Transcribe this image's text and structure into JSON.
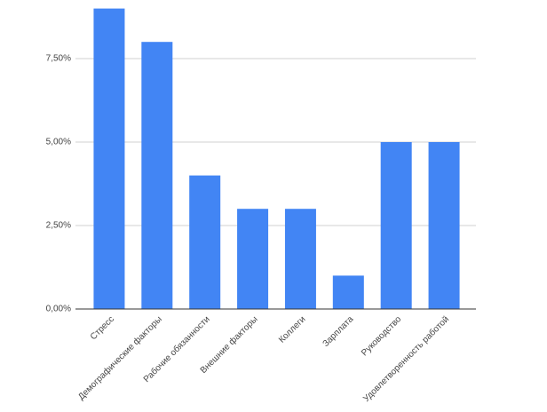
{
  "chart_data": {
    "type": "bar",
    "categories": [
      "Стресс",
      "Демографические факторы",
      "Рабочие обязанности",
      "Внешние факторы",
      "Коллеги",
      "Зарплата",
      "Руководство",
      "Удовлетворенность работой"
    ],
    "values": [
      9,
      8,
      4,
      3,
      3,
      1,
      5,
      5
    ],
    "color": "#4285f4",
    "ylim": [
      0,
      9
    ],
    "yticks": [
      {
        "value": 0,
        "label": "0,00%"
      },
      {
        "value": 2.5,
        "label": "2,50%"
      },
      {
        "value": 5,
        "label": "5,00%"
      },
      {
        "value": 7.5,
        "label": "7,50%"
      }
    ],
    "grid": true
  }
}
